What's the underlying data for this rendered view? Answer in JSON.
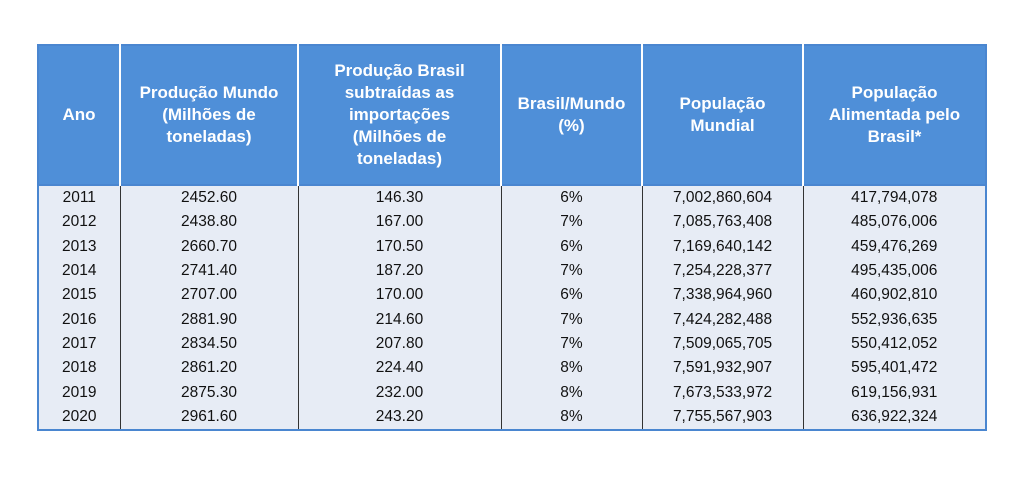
{
  "table": {
    "headers": [
      [
        "Ano"
      ],
      [
        "Produção Mundo",
        "(Milhões de",
        "toneladas)"
      ],
      [
        "Produção Brasil",
        "subtraídas as",
        "importações",
        "(Milhões de",
        "toneladas)"
      ],
      [
        "Brasil/Mundo",
        "(%)"
      ],
      [
        "População",
        "Mundial"
      ],
      [
        "População",
        "Alimentada pelo",
        "Brasil*"
      ]
    ],
    "rows": [
      [
        "2011",
        "2452.60",
        "146.30",
        "6%",
        "7,002,860,604",
        "417,794,078"
      ],
      [
        "2012",
        "2438.80",
        "167.00",
        "7%",
        "7,085,763,408",
        "485,076,006"
      ],
      [
        "2013",
        "2660.70",
        "170.50",
        "6%",
        "7,169,640,142",
        "459,476,269"
      ],
      [
        "2014",
        "2741.40",
        "187.20",
        "7%",
        "7,254,228,377",
        "495,435,006"
      ],
      [
        "2015",
        "2707.00",
        "170.00",
        "6%",
        "7,338,964,960",
        "460,902,810"
      ],
      [
        "2016",
        "2881.90",
        "214.60",
        "7%",
        "7,424,282,488",
        "552,936,635"
      ],
      [
        "2017",
        "2834.50",
        "207.80",
        "7%",
        "7,509,065,705",
        "550,412,052"
      ],
      [
        "2018",
        "2861.20",
        "224.40",
        "8%",
        "7,591,932,907",
        "595,401,472"
      ],
      [
        "2019",
        "2875.30",
        "232.00",
        "8%",
        "7,673,533,972",
        "619,156,931"
      ],
      [
        "2020",
        "2961.60",
        "243.20",
        "8%",
        "7,755,567,903",
        "636,922,324"
      ]
    ]
  }
}
